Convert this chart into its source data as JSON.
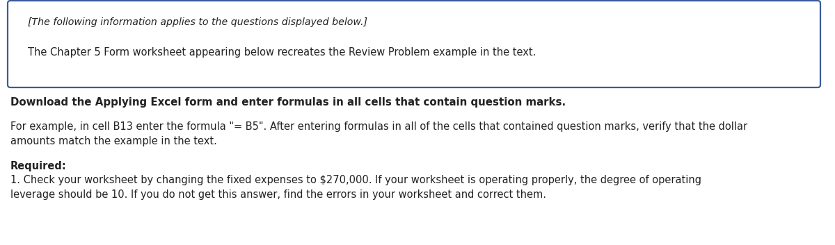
{
  "box_italic_text": "[The following information applies to the questions displayed below.]",
  "box_normal_text": "The Chapter 5 Form worksheet appearing below recreates the Review Problem example in the text.",
  "bold_line": "Download the Applying Excel form and enter formulas in all cells that contain question marks.",
  "para1_line1": "For example, in cell B13 enter the formula \"= B5\". After entering formulas in all of the cells that contained question marks, verify that the dollar",
  "para1_line2": "amounts match the example in the text.",
  "required_label": "Required:",
  "para2_line1": "1. Check your worksheet by changing the fixed expenses to $270,000. If your worksheet is operating properly, the degree of operating",
  "para2_line2": "leverage should be 10. If you do not get this answer, find the errors in your worksheet and correct them.",
  "background_color": "#ffffff",
  "box_border_color": "#3a5a9a",
  "text_color": "#222222",
  "fig_width": 12.0,
  "fig_height": 3.53,
  "font_size_main": 10.5,
  "font_size_italic": 10.2,
  "font_size_bold": 10.8
}
